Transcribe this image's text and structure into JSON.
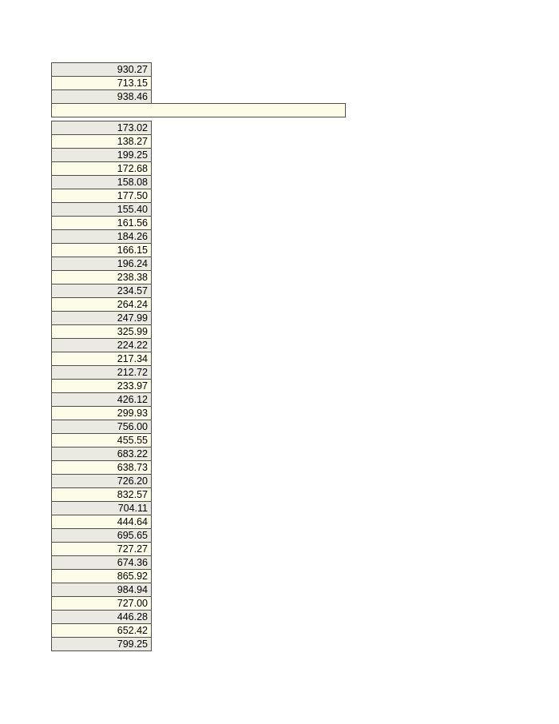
{
  "colors": {
    "row_gray": "#eaeae2",
    "row_cream": "#fcfce9",
    "border": "#50504a",
    "text": "#000000",
    "page_bg": "#ffffff"
  },
  "top_table": {
    "values": [
      "930.27",
      "713.15",
      "938.46"
    ]
  },
  "wide_cell": {
    "value": ""
  },
  "main_table": {
    "values": [
      "173.02",
      "138.27",
      "199.25",
      "172.68",
      "158.08",
      "177.50",
      "155.40",
      "161.56",
      "184.26",
      "166.15",
      "196.24",
      "238.38",
      "234.57",
      "264.24",
      "247.99",
      "325.99",
      "224.22",
      "217.34",
      "212.72",
      "233.97",
      "426.12",
      "299.93",
      "756.00",
      "455.55",
      "683.22",
      "638.73",
      "726.20",
      "832.57",
      "704.11",
      "444.64",
      "695.65",
      "727.27",
      "674.36",
      "865.92",
      "984.94",
      "727.00",
      "446.28",
      "652.42",
      "799.25"
    ]
  }
}
